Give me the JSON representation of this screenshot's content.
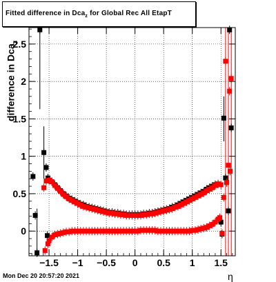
{
  "title": {
    "prefix": "Fitted difference in Dca",
    "sub": "z",
    "suffix": " for Global Rec All EtapT"
  },
  "ylabel": {
    "main": "difference in Dca",
    "sub": "z"
  },
  "xlabel": "η",
  "footer": "Mon Dec 20 20:57:20 2021",
  "chart_data": {
    "type": "scatter",
    "xlim": [
      -1.85,
      1.75
    ],
    "ylim": [
      -0.33,
      2.72
    ],
    "grid": true,
    "x_ticks": [
      {
        "v": -1.5,
        "label": "−1.5"
      },
      {
        "v": -1,
        "label": "−1"
      },
      {
        "v": -0.5,
        "label": "−0.5"
      },
      {
        "v": 0,
        "label": "0"
      },
      {
        "v": 0.5,
        "label": "0.5"
      },
      {
        "v": 1,
        "label": "1"
      },
      {
        "v": 1.5,
        "label": "1.5"
      }
    ],
    "y_ticks": [
      {
        "v": 0,
        "label": "0"
      },
      {
        "v": 0.5,
        "label": "0.5"
      },
      {
        "v": 1,
        "label": "1"
      },
      {
        "v": 1.5,
        "label": "1.5"
      },
      {
        "v": 2,
        "label": "2"
      },
      {
        "v": 2.5,
        "label": "2.5"
      }
    ],
    "series": [
      {
        "color": "#000000",
        "marker": "square",
        "values": [
          [
            -1.78,
            0.73
          ],
          [
            -1.74,
            0.21
          ],
          [
            -1.71,
            -0.29
          ],
          [
            -1.66,
            2.69
          ],
          [
            -1.59,
            1.05
          ],
          [
            -1.55,
            0.85
          ],
          [
            -1.53,
            -0.06
          ],
          [
            -1.52,
            0.71
          ],
          [
            -1.5,
            0.68
          ],
          [
            -1.45,
            0.66
          ],
          [
            -1.4,
            0.62
          ],
          [
            -1.35,
            0.58
          ],
          [
            -1.3,
            0.54
          ],
          [
            -1.25,
            0.5
          ],
          [
            -1.2,
            0.47
          ],
          [
            -1.15,
            0.44
          ],
          [
            -1.1,
            0.42
          ],
          [
            -1.05,
            0.4
          ],
          [
            -1.0,
            0.38
          ],
          [
            -0.95,
            0.36
          ],
          [
            -0.9,
            0.35
          ],
          [
            -0.85,
            0.33
          ],
          [
            -0.8,
            0.32
          ],
          [
            -0.75,
            0.31
          ],
          [
            -0.7,
            0.3
          ],
          [
            -0.65,
            0.29
          ],
          [
            -0.6,
            0.28
          ],
          [
            -0.55,
            0.27
          ],
          [
            -0.5,
            0.26
          ],
          [
            -0.45,
            0.25
          ],
          [
            -0.4,
            0.25
          ],
          [
            -0.35,
            0.24
          ],
          [
            -0.3,
            0.24
          ],
          [
            -0.25,
            0.23
          ],
          [
            -0.2,
            0.23
          ],
          [
            -0.15,
            0.22
          ],
          [
            -0.1,
            0.22
          ],
          [
            -0.05,
            0.22
          ],
          [
            0.0,
            0.22
          ],
          [
            0.05,
            0.22
          ],
          [
            0.1,
            0.22
          ],
          [
            0.15,
            0.23
          ],
          [
            0.2,
            0.23
          ],
          [
            0.25,
            0.24
          ],
          [
            0.3,
            0.24
          ],
          [
            0.35,
            0.25
          ],
          [
            0.4,
            0.26
          ],
          [
            0.45,
            0.27
          ],
          [
            0.5,
            0.28
          ],
          [
            0.55,
            0.29
          ],
          [
            0.6,
            0.3
          ],
          [
            0.65,
            0.32
          ],
          [
            0.7,
            0.33
          ],
          [
            0.75,
            0.35
          ],
          [
            0.8,
            0.37
          ],
          [
            0.85,
            0.39
          ],
          [
            0.9,
            0.41
          ],
          [
            0.95,
            0.43
          ],
          [
            1.0,
            0.45
          ],
          [
            1.05,
            0.47
          ],
          [
            1.1,
            0.49
          ],
          [
            1.15,
            0.51
          ],
          [
            1.2,
            0.53
          ],
          [
            1.25,
            0.56
          ],
          [
            1.3,
            0.58
          ],
          [
            1.35,
            0.6
          ],
          [
            1.4,
            0.62
          ],
          [
            1.45,
            0.63
          ],
          [
            1.5,
            0.12
          ],
          [
            1.52,
            -0.04
          ],
          [
            1.55,
            1.51
          ],
          [
            1.58,
            0.71
          ],
          [
            1.6,
            0.65
          ],
          [
            1.63,
            0.27
          ],
          [
            1.65,
            2.69
          ],
          [
            1.68,
            1.38
          ]
        ]
      },
      {
        "color": "#ff0000",
        "marker": "square",
        "values": [
          [
            -1.59,
            0.58
          ],
          [
            -1.57,
            -0.26
          ],
          [
            -1.55,
            0.67
          ],
          [
            -1.52,
            -0.17
          ],
          [
            -1.5,
            0.68
          ],
          [
            -1.45,
            0.66
          ],
          [
            -1.4,
            0.61
          ],
          [
            -1.35,
            0.57
          ],
          [
            -1.3,
            0.53
          ],
          [
            -1.25,
            0.49
          ],
          [
            -1.2,
            0.46
          ],
          [
            -1.15,
            0.43
          ],
          [
            -1.1,
            0.41
          ],
          [
            -1.05,
            0.39
          ],
          [
            -1.0,
            0.37
          ],
          [
            -0.95,
            0.35
          ],
          [
            -0.9,
            0.33
          ],
          [
            -0.85,
            0.32
          ],
          [
            -0.8,
            0.31
          ],
          [
            -0.75,
            0.3
          ],
          [
            -0.7,
            0.29
          ],
          [
            -0.65,
            0.28
          ],
          [
            -0.6,
            0.27
          ],
          [
            -0.55,
            0.26
          ],
          [
            -0.5,
            0.25
          ],
          [
            -0.45,
            0.24
          ],
          [
            -0.4,
            0.24
          ],
          [
            -0.35,
            0.23
          ],
          [
            -0.3,
            0.23
          ],
          [
            -0.25,
            0.22
          ],
          [
            -0.2,
            0.22
          ],
          [
            -0.15,
            0.21
          ],
          [
            -0.1,
            0.21
          ],
          [
            -0.05,
            0.21
          ],
          [
            0.0,
            0.21
          ],
          [
            0.05,
            0.21
          ],
          [
            0.1,
            0.21
          ],
          [
            0.15,
            0.22
          ],
          [
            0.2,
            0.22
          ],
          [
            0.25,
            0.23
          ],
          [
            0.3,
            0.23
          ],
          [
            0.35,
            0.24
          ],
          [
            0.4,
            0.25
          ],
          [
            0.45,
            0.26
          ],
          [
            0.5,
            0.27
          ],
          [
            0.55,
            0.28
          ],
          [
            0.6,
            0.29
          ],
          [
            0.65,
            0.3
          ],
          [
            0.7,
            0.32
          ],
          [
            0.75,
            0.33
          ],
          [
            0.8,
            0.35
          ],
          [
            0.85,
            0.37
          ],
          [
            0.9,
            0.39
          ],
          [
            0.95,
            0.41
          ],
          [
            1.0,
            0.43
          ],
          [
            1.05,
            0.45
          ],
          [
            1.1,
            0.47
          ],
          [
            1.15,
            0.49
          ],
          [
            1.2,
            0.51
          ],
          [
            1.25,
            0.54
          ],
          [
            1.3,
            0.56
          ],
          [
            1.35,
            0.58
          ],
          [
            1.4,
            0.61
          ],
          [
            1.45,
            0.63
          ],
          [
            1.5,
            0.62
          ],
          [
            1.52,
            -0.03
          ],
          [
            1.55,
            0.45
          ],
          [
            1.58,
            2.27
          ],
          [
            1.6,
            0.65
          ],
          [
            1.63,
            0.88
          ],
          [
            1.65,
            1.87
          ],
          [
            1.68,
            2.04
          ],
          [
            1.66,
            0.8
          ],
          [
            -1.5,
            -0.13
          ],
          [
            -1.45,
            -0.08
          ],
          [
            -1.4,
            -0.05
          ],
          [
            -1.35,
            -0.04
          ],
          [
            -1.3,
            -0.03
          ],
          [
            -1.25,
            -0.02
          ],
          [
            -1.2,
            -0.01
          ],
          [
            -1.15,
            -0.01
          ],
          [
            -1.1,
            0.0
          ],
          [
            -1.05,
            0.0
          ],
          [
            -1.0,
            0.0
          ],
          [
            -0.95,
            0.0
          ],
          [
            -0.9,
            0.0
          ],
          [
            -0.85,
            0.0
          ],
          [
            -0.8,
            0.0
          ],
          [
            -0.75,
            0.0
          ],
          [
            -0.7,
            0.0
          ],
          [
            -0.65,
            0.0
          ],
          [
            -0.6,
            0.0
          ],
          [
            -0.55,
            0.0
          ],
          [
            -0.5,
            0.0
          ],
          [
            -0.45,
            0.0
          ],
          [
            -0.4,
            0.0
          ],
          [
            -0.35,
            0.0
          ],
          [
            -0.3,
            0.0
          ],
          [
            -0.25,
            0.0
          ],
          [
            -0.2,
            0.0
          ],
          [
            -0.15,
            0.0
          ],
          [
            -0.1,
            0.0
          ],
          [
            -0.05,
            0.0
          ],
          [
            0.0,
            0.0
          ],
          [
            0.05,
            0.0
          ],
          [
            0.1,
            0.01
          ],
          [
            0.15,
            0.01
          ],
          [
            0.2,
            0.01
          ],
          [
            0.25,
            0.01
          ],
          [
            0.3,
            0.01
          ],
          [
            0.35,
            0.01
          ],
          [
            0.4,
            0.0
          ],
          [
            0.45,
            0.0
          ],
          [
            0.5,
            0.0
          ],
          [
            0.55,
            0.0
          ],
          [
            0.6,
            0.0
          ],
          [
            0.65,
            0.0
          ],
          [
            0.7,
            0.0
          ],
          [
            0.75,
            0.0
          ],
          [
            0.8,
            0.0
          ],
          [
            0.85,
            0.0
          ],
          [
            0.9,
            0.0
          ],
          [
            0.95,
            0.0
          ],
          [
            1.0,
            0.01
          ],
          [
            1.05,
            0.01
          ],
          [
            1.1,
            0.02
          ],
          [
            1.15,
            0.03
          ],
          [
            1.2,
            0.04
          ],
          [
            1.25,
            0.05
          ],
          [
            1.3,
            0.07
          ],
          [
            1.35,
            0.09
          ],
          [
            1.4,
            0.12
          ],
          [
            1.45,
            0.16
          ],
          [
            1.48,
            0.18
          ]
        ]
      }
    ],
    "error_bars": [
      {
        "color": "#000000",
        "x": -1.66,
        "low": 1.63,
        "high": 2.72
      },
      {
        "color": "#000000",
        "x": -1.71,
        "low": -0.33,
        "high": 0.3
      },
      {
        "color": "#000000",
        "x": -1.59,
        "low": 0.7,
        "high": 1.4
      },
      {
        "color": "#ff0000",
        "x": 1.58,
        "low": -0.33,
        "high": 2.72
      },
      {
        "color": "#ff0000",
        "x": 1.63,
        "low": -0.33,
        "high": 2.72
      },
      {
        "color": "#ff0000",
        "x": 1.68,
        "low": -0.33,
        "high": 2.72
      },
      {
        "color": "#000000",
        "x": 1.55,
        "low": 1.2,
        "high": 1.8
      }
    ]
  }
}
